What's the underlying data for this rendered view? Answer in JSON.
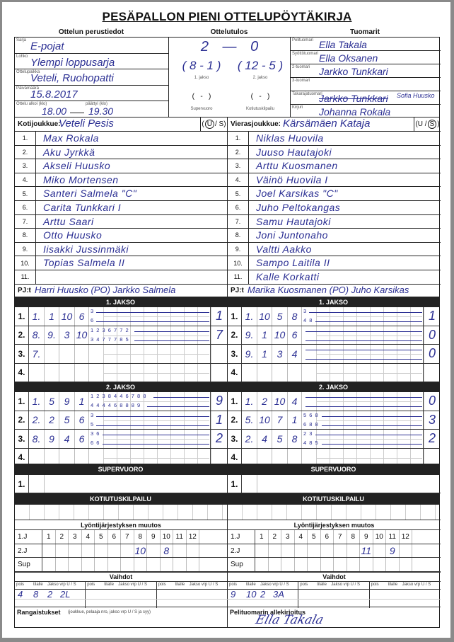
{
  "title": "PESÄPALLON PIENI OTTELUPÖYTÄKIRJA",
  "sections": {
    "basic": "Ottelun perustiedot",
    "result": "Ottelutulos",
    "referees": "Tuomarit"
  },
  "basic": {
    "series_label": "Sarja",
    "series": "E-pojat",
    "group_label": "Lohko",
    "group": "Ylempi loppusarja",
    "venue_label": "Ottelupaikka",
    "venue": "Veteli, Ruohopatti",
    "date_label": "Päivämäärä",
    "date": "15.8.2017",
    "start_label": "Ottelu alkoi (klo)",
    "start": "18.00",
    "end_label": "päättyi (klo)",
    "end": "19.30"
  },
  "result": {
    "home": "2",
    "dash": "—",
    "away": "0",
    "p1": "( 8 - 1 )",
    "p1_label": "1. jakso",
    "p2": "( 12 - 5 )",
    "p2_label": "2. jakso",
    "sup": "(   -   )",
    "sup_label": "Supervuoro",
    "kot": "(   -   )",
    "kot_label": "Kotiutuskilpailu"
  },
  "referees": [
    {
      "label": "Pelituomari",
      "name": "Ella Takala"
    },
    {
      "label": "Syöttötuomari",
      "name": "Ella Oksanen"
    },
    {
      "label": "2-tuomari",
      "name": "Jarkko Tunkkari"
    },
    {
      "label": "3-tuomari",
      "name": ""
    },
    {
      "label": "Takarajatuomari",
      "name": "Jarkko Tunkkari",
      "correction": "Sofia Huusko"
    },
    {
      "label": "Kirjuri",
      "name": "Johanna Rokala"
    }
  ],
  "home": {
    "label": "Kotijoukkue:",
    "team": "Veteli Pesis",
    "us": "U",
    "us_rest": "/ S)",
    "us_open": "(",
    "players": [
      "Max Rokala",
      "Aku Jyrkkä",
      "Akseli Huusko",
      "Miko Mortensen",
      "Santeri Salmela \"C\"",
      "Carita Tunkkari I",
      "Arttu Saari",
      "Otto Huusko",
      "Iisakki Jussinmäki",
      "Topias Salmela II",
      ""
    ],
    "pj_label": "PJ:t",
    "pj": "Harri Huusko (PO) Jarkko Salmela"
  },
  "away": {
    "label": "Vierasjoukkue:",
    "team": "Kärsämäen Kataja",
    "us": "S",
    "us_rest": ")",
    "us_open": "(U /",
    "players": [
      "Niklas Huovila",
      "Juuso Hautajoki",
      "Arttu Kuosmanen",
      "Väinö Huovila I",
      "Joel Karsikas \"C\"",
      "Juho Peltokangas",
      "Samu Hautajoki",
      "Joni Juntonaho",
      "Valtti Aakko",
      "Sampo Laitila II",
      "Kalle Korkatti"
    ],
    "pj_label": "PJ:t",
    "pj": "Marika Kuosmanen (PO) Juho Karsikas"
  },
  "row_numbers": [
    "1.",
    "2.",
    "3.",
    "4.",
    "5.",
    "6.",
    "7.",
    "8.",
    "9.",
    "10.",
    "11."
  ],
  "periods": [
    {
      "title": "1. JAKSO",
      "home": [
        {
          "n": "1.",
          "c": [
            "1.",
            "1",
            "10",
            "6"
          ],
          "t": "3",
          "b": "6",
          "s": "1"
        },
        {
          "n": "2.",
          "c": [
            "8.",
            "9.",
            "3",
            "10"
          ],
          "t": "1 2 3 6 7 7 2",
          "b": "3 4 7 7 7 8 5",
          "s": "7"
        },
        {
          "n": "3.",
          "c": [
            "7.",
            "",
            "",
            ""
          ],
          "t": "",
          "b": "",
          "s": ""
        },
        {
          "n": "4.",
          "c": [
            "",
            "",
            "",
            ""
          ],
          "t": "",
          "b": "",
          "s": ""
        }
      ],
      "away": [
        {
          "n": "1.",
          "c": [
            "1.",
            "10",
            "5",
            "8"
          ],
          "t": "3",
          "b": "4 8",
          "s": "1"
        },
        {
          "n": "2.",
          "c": [
            "9.",
            "1",
            "10",
            "6"
          ],
          "t": "",
          "b": "",
          "s": "0"
        },
        {
          "n": "3.",
          "c": [
            "9.",
            "1",
            "3",
            "4"
          ],
          "t": "",
          "b": "",
          "s": "0"
        },
        {
          "n": "4.",
          "c": [
            "",
            "",
            "",
            ""
          ],
          "t": "",
          "b": "",
          "s": ""
        }
      ]
    },
    {
      "title": "2. JAKSO",
      "home": [
        {
          "n": "1.",
          "c": [
            "1.",
            "5",
            "9",
            "1"
          ],
          "t": "1 2 3 8 4 4 6 7 8 8",
          "b": "4 4 4 4 6 8 8 8 9",
          "s": "9"
        },
        {
          "n": "2.",
          "c": [
            "2.",
            "2",
            "5",
            "6"
          ],
          "t": "3",
          "b": "5",
          "s": "1"
        },
        {
          "n": "3.",
          "c": [
            "8.",
            "9",
            "4",
            "6"
          ],
          "t": "3 6",
          "b": "6 6",
          "s": "2"
        },
        {
          "n": "4.",
          "c": [
            "",
            "",
            "",
            ""
          ],
          "t": "",
          "b": "",
          "s": ""
        }
      ],
      "away": [
        {
          "n": "1.",
          "c": [
            "1.",
            "2",
            "10",
            "4"
          ],
          "t": "",
          "b": "",
          "s": "0"
        },
        {
          "n": "2.",
          "c": [
            "5.",
            "10",
            "7",
            "1"
          ],
          "t": "5 6 8",
          "b": "6 8 8",
          "s": "3"
        },
        {
          "n": "3.",
          "c": [
            "2.",
            "4",
            "5",
            "8"
          ],
          "t": "2 3",
          "b": "4 8 5",
          "s": "2"
        },
        {
          "n": "4.",
          "c": [
            "",
            "",
            "",
            ""
          ],
          "t": "",
          "b": "",
          "s": ""
        }
      ]
    }
  ],
  "supervuoro": {
    "title": "SUPERVUORO",
    "row": "1."
  },
  "kotiutus": {
    "title": "KOTIUTUSKILPAILU"
  },
  "order_change": {
    "title": "Lyöntijärjestyksen muutos",
    "rows": [
      "1.J",
      "2.J",
      "Sup"
    ],
    "cols": [
      "1",
      "2",
      "3",
      "4",
      "5",
      "6",
      "7",
      "8",
      "9",
      "10",
      "11",
      "12"
    ],
    "home_2j": {
      "8": "10",
      "10": "8"
    },
    "away_2j": {
      "9": "11",
      "11": "9"
    }
  },
  "subs": {
    "title": "Vaihdot",
    "headers": [
      "pois",
      "tilalle",
      "Jakso vrp U / S"
    ],
    "home": [
      [
        "4",
        "8",
        "2",
        "2L"
      ]
    ],
    "away": [
      [
        "9",
        "10",
        "2",
        "3A"
      ]
    ]
  },
  "penalties": {
    "label": "Rangaistukset",
    "hint": "(joukkue, pelaaja nro, jakso vrp U / S ja syy)"
  },
  "signature": {
    "label": "Pelituomarin allekirjoitus",
    "sig": "Ella Takala"
  },
  "colors": {
    "ink": "#2b2f93",
    "bar": "#222222"
  }
}
